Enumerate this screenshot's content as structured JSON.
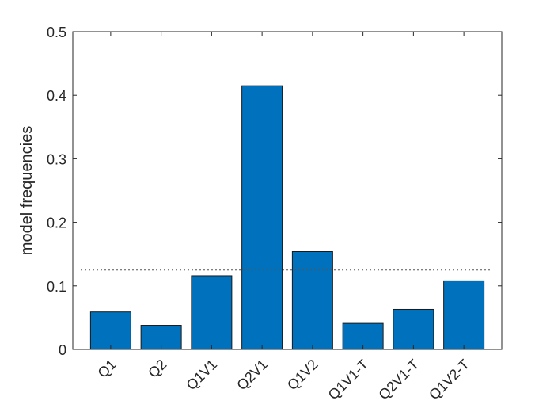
{
  "chart_data": {
    "type": "bar",
    "categories": [
      "Q1",
      "Q2",
      "Q1V1",
      "Q2V1",
      "Q1V2",
      "Q1V1-T",
      "Q2V1-T",
      "Q1V2-T"
    ],
    "values": [
      0.059,
      0.038,
      0.116,
      0.415,
      0.154,
      0.041,
      0.063,
      0.108
    ],
    "xlabel": "",
    "ylabel": "model frequencies",
    "ylim": [
      0,
      0.5
    ],
    "yticks": [
      0,
      0.1,
      0.2,
      0.3,
      0.4,
      0.5
    ],
    "ytick_labels": [
      "0",
      "0.1",
      "0.2",
      "0.3",
      "0.4",
      "0.5"
    ],
    "reference_line": {
      "y": 0.125,
      "style": "dotted"
    },
    "bar_color": "#0072BD",
    "grid": false,
    "legend": "none",
    "x_tick_rotation": "45 degrees"
  }
}
